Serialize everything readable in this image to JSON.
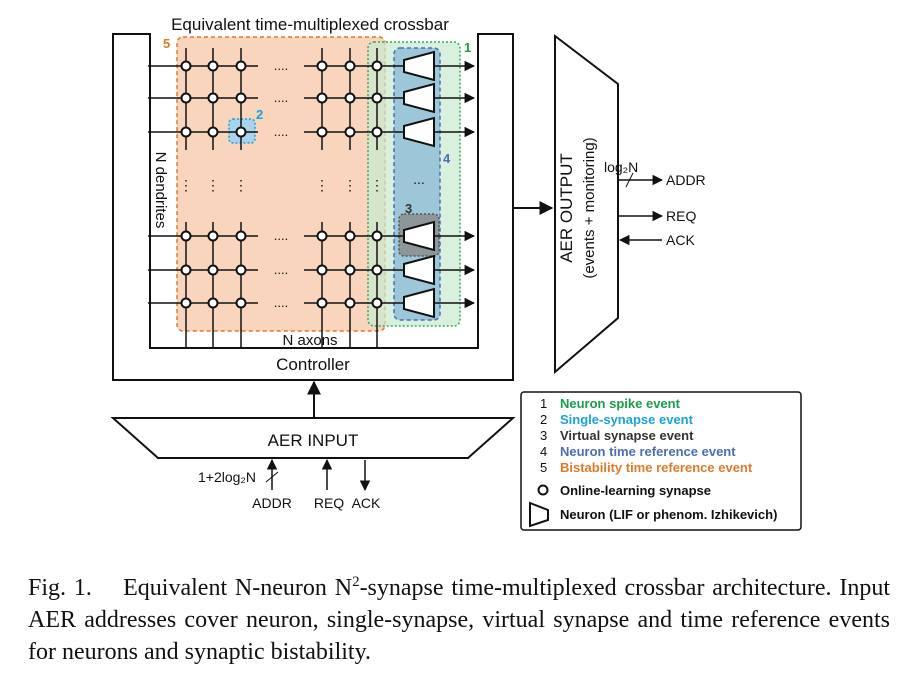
{
  "crossbar": {
    "title": "Equivalent time-multiplexed crossbar",
    "dendrites_label": "N dendrites",
    "axons_label": "N axons",
    "controller_label": "Controller",
    "ellipsis": "...",
    "col_ellipsis": "....",
    "markers": {
      "m1": "1",
      "m2": "2",
      "m3": "3",
      "m4": "4",
      "m5": "5"
    }
  },
  "aer_input": {
    "label": "AER INPUT",
    "bus_width": "1+2log₂N",
    "addr": "ADDR",
    "req": "REQ",
    "ack": "ACK"
  },
  "aer_output": {
    "label": "AER OUTPUT",
    "sublabel": "(events + monitoring)",
    "bus_width": "log₂N",
    "addr": "ADDR",
    "req": "REQ",
    "ack": "ACK"
  },
  "legend": {
    "items": [
      {
        "num": "1",
        "text": "Neuron spike event",
        "color": "#1a9e4a"
      },
      {
        "num": "2",
        "text": "Single-synapse event",
        "color": "#1aa3d9"
      },
      {
        "num": "3",
        "text": "Virtual synapse event",
        "color": "#333333"
      },
      {
        "num": "4",
        "text": "Neuron time reference event",
        "color": "#4a6fb5"
      },
      {
        "num": "5",
        "text": "Bistability time reference event",
        "color": "#e07a2b"
      }
    ],
    "synapse_text": "Online-learning synapse",
    "neuron_text": "Neuron (LIF or phenom. Izhikevich)"
  },
  "caption": {
    "fig": "Fig. 1.",
    "part1": "Equivalent N-neuron N",
    "sup": "2",
    "part2": "-synapse time-multiplexed crossbar architecture. Input AER addresses cover neuron, single-synapse, virtual synapse and time reference events for neurons and synaptic bistability."
  },
  "colors": {
    "orange_fill": "#f6c7a6",
    "orange_edge": "#e07a2b",
    "green_fill": "#c8e9cf",
    "green_edge": "#39a85a",
    "blue_fill": "#8ab9d6",
    "blue_edge": "#4a6fb5",
    "gray_fill": "#8a8a8a",
    "light_blue": "#a9d3ea"
  }
}
